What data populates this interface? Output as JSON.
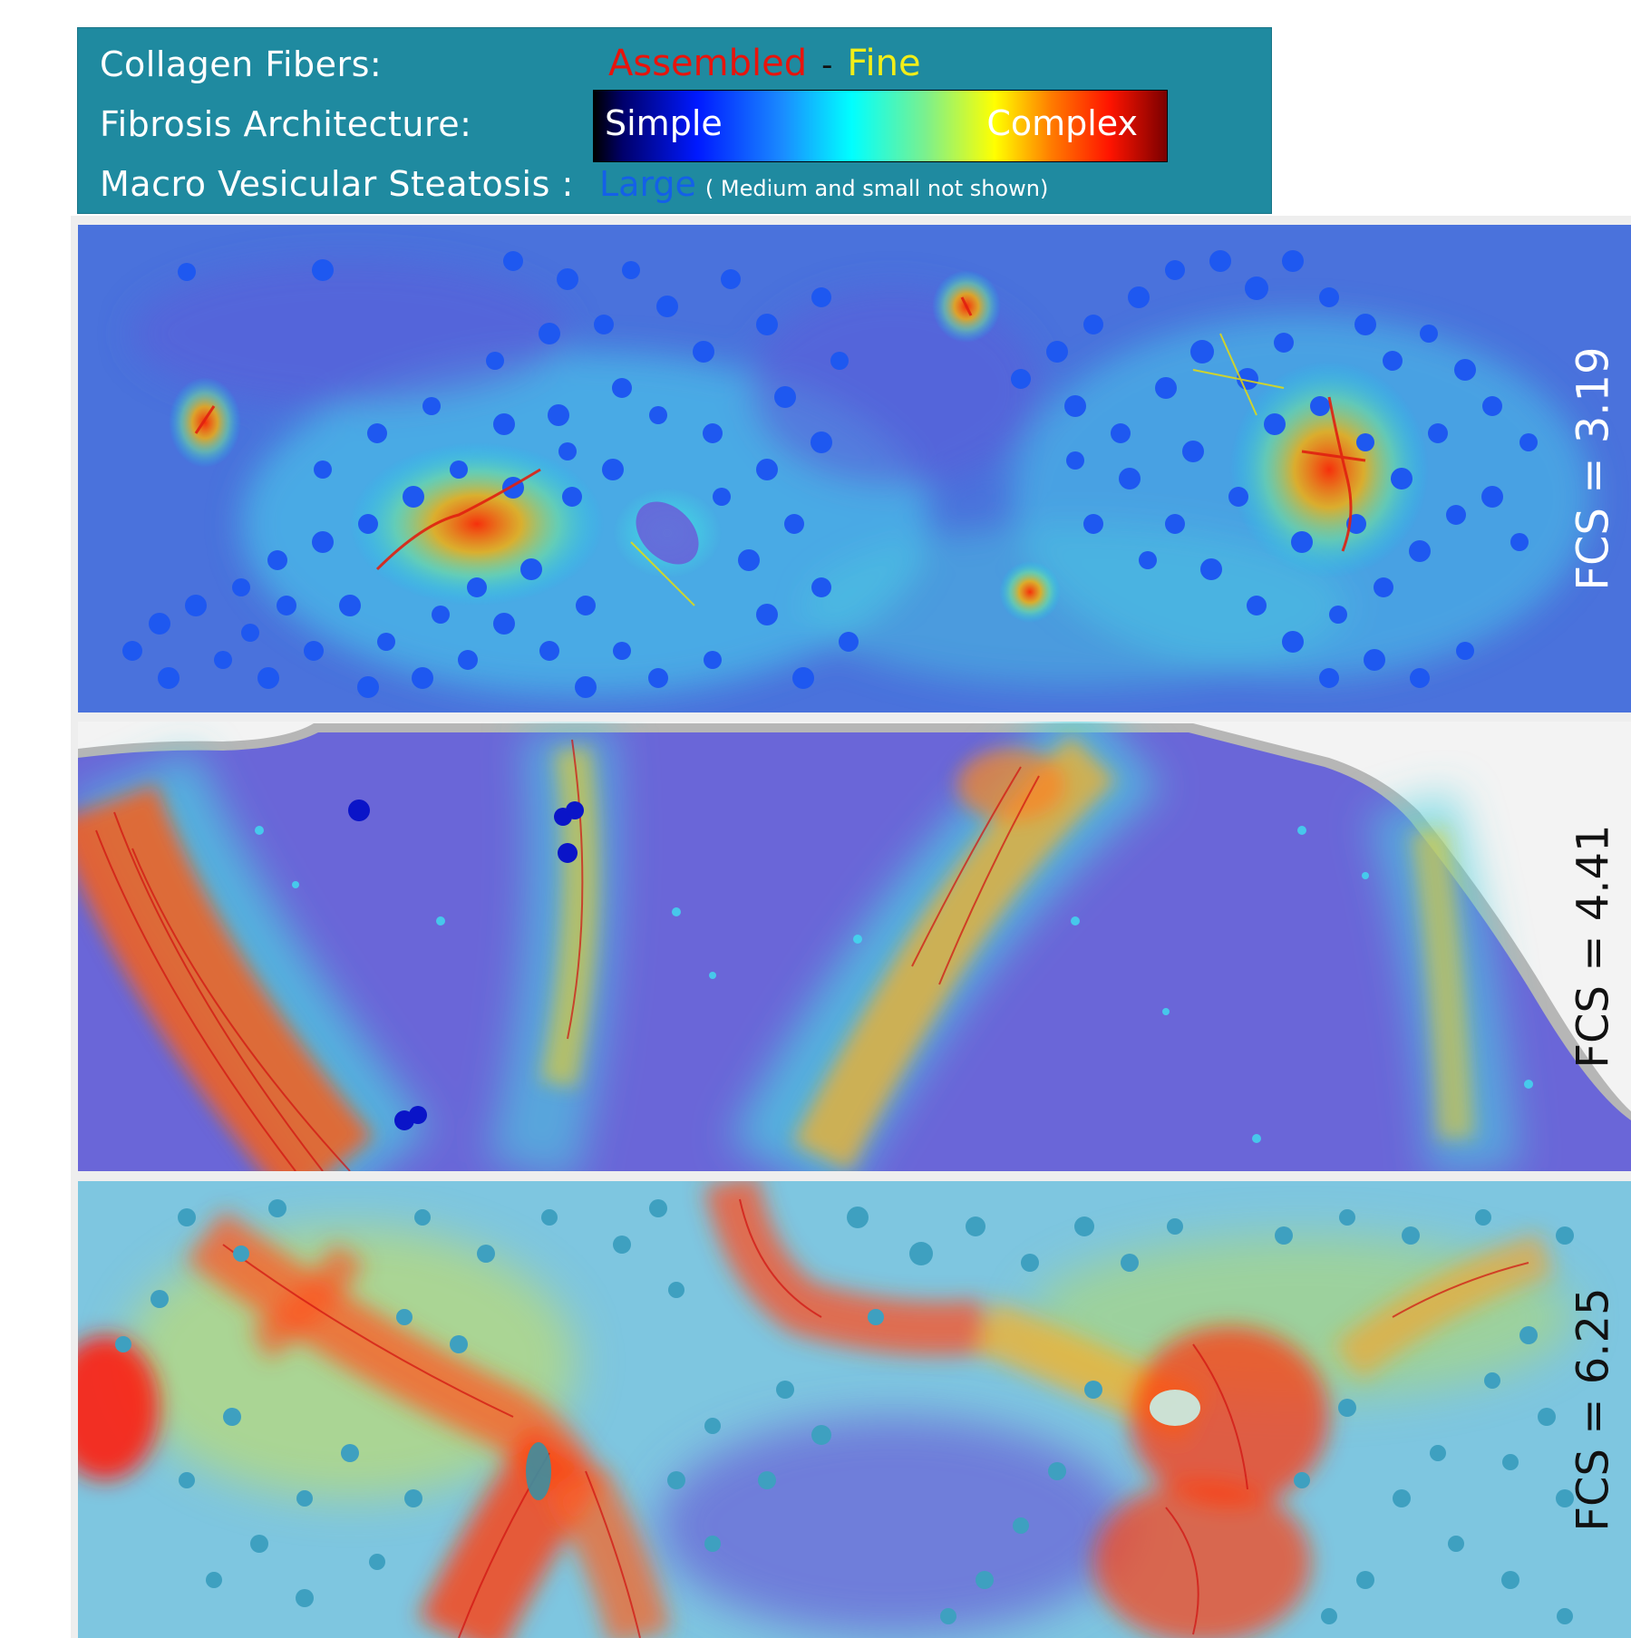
{
  "legend": {
    "collagen_label": "Collagen Fibers:",
    "assembled": "Assembled",
    "dash": "-",
    "fine": "Fine",
    "fibrosis_label": "Fibrosis Architecture:",
    "simple": "Simple",
    "complex": "Complex",
    "steatosis_label": "Macro Vesicular Steatosis :",
    "large": "Large",
    "note": "( Medium and small not shown)"
  },
  "panels": [
    {
      "fcs_label": "FCS = 3.19"
    },
    {
      "fcs_label": "FCS = 4.41"
    },
    {
      "fcs_label": "FCS = 6.25"
    }
  ],
  "colors": {
    "legend_background": "#1f8aa0",
    "assembled": "#e8140c",
    "fine": "#f2ee18",
    "large_steatosis": "#1460e8"
  }
}
